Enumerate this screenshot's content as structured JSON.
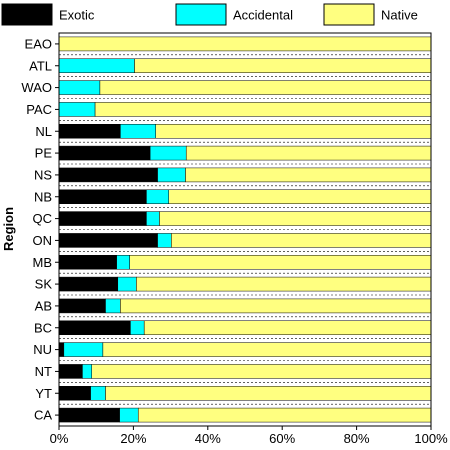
{
  "chart_data": {
    "type": "bar",
    "orientation": "horizontal",
    "stacked": "percent",
    "title": "",
    "xlabel": "",
    "ylabel": "Region",
    "xlim": [
      0,
      100
    ],
    "x_ticks": [
      "0%",
      "20%",
      "40%",
      "60%",
      "80%",
      "100%"
    ],
    "grid": "dashed horizontal lines between categories",
    "legend_position": "top",
    "categories": [
      "EAO",
      "ATL",
      "WAO",
      "PAC",
      "NL",
      "PE",
      "NS",
      "NB",
      "QC",
      "ON",
      "MB",
      "SK",
      "AB",
      "BC",
      "NU",
      "NT",
      "YT",
      "CA"
    ],
    "series": [
      {
        "name": "Exotic",
        "color": "#000000",
        "values": [
          0,
          0,
          0,
          0,
          16.5,
          24.5,
          26.5,
          23.5,
          23.5,
          26.5,
          15.5,
          15.8,
          12.5,
          19.2,
          1.3,
          6.3,
          8.5,
          16.3
        ]
      },
      {
        "name": "Accidental",
        "color": "#00ffff",
        "values": [
          0,
          20.3,
          11.0,
          9.7,
          9.5,
          9.7,
          7.5,
          6.0,
          3.5,
          3.7,
          3.5,
          5.0,
          4.0,
          3.7,
          10.5,
          2.5,
          4.0,
          5.0
        ]
      },
      {
        "name": "Native",
        "color": "#ffff80",
        "values": [
          100,
          79.7,
          89.0,
          90.3,
          74.0,
          65.8,
          66.0,
          70.5,
          73.0,
          69.8,
          81.0,
          79.2,
          83.5,
          77.1,
          88.2,
          91.2,
          87.5,
          78.7
        ]
      }
    ]
  }
}
